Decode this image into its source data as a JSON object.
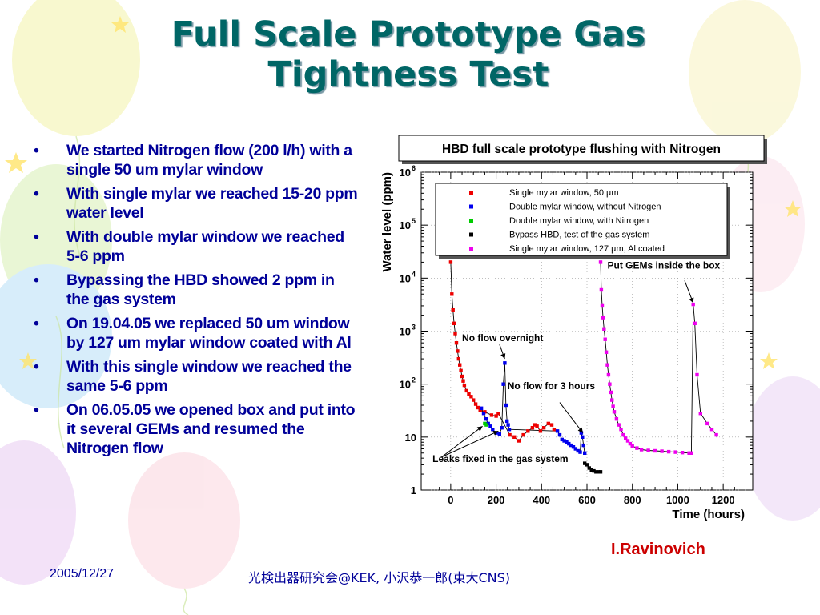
{
  "slide": {
    "title_line1": "Full Scale Prototype Gas",
    "title_line2": "Tightness Test",
    "bullets": [
      "We started Nitrogen flow (200 l/h) with a single 50 um mylar window",
      "With single mylar we reached 15-20 ppm water level",
      "With double mylar window we reached 5-6 ppm",
      "Bypassing the HBD showed 2 ppm in the gas system",
      "On 19.04.05 we replaced 50 um window by 127 um mylar window coated with Al",
      "With this single window we reached the same 5-6 ppm",
      "On 06.05.05 we opened box and put into it several GEMs and resumed the Nitrogen flow"
    ],
    "bullet_symbol": "•",
    "author": "I.Ravinovich",
    "footer_date": "2005/12/27",
    "footer_center": "光検出器研究会@KEK, 小沢恭一郎(東大CNS)"
  },
  "colors": {
    "title": "#006666",
    "bullets": "#000099",
    "author": "#cc0000",
    "series_red": "#ee0000",
    "series_blue": "#0000ee",
    "series_green": "#00cc00",
    "series_black": "#000000",
    "series_magenta": "#ee00ee"
  },
  "chart_data": {
    "type": "scatter",
    "title": "HBD full scale prototype flushing with Nitrogen",
    "xlabel": "Time (hours)",
    "ylabel": "Water level (ppm)",
    "xlim": [
      -130,
      1330
    ],
    "ylim": [
      1,
      1000000
    ],
    "yscale": "log",
    "x_ticks": [
      "0",
      "200",
      "400",
      "600",
      "800",
      "1000",
      "1200"
    ],
    "x_tick_values": [
      0,
      200,
      400,
      600,
      800,
      1000,
      1200
    ],
    "y_ticks": [
      {
        "base": "1",
        "exp": ""
      },
      {
        "base": "10",
        "exp": ""
      },
      {
        "base": "10",
        "exp": "2"
      },
      {
        "base": "10",
        "exp": "3"
      },
      {
        "base": "10",
        "exp": "4"
      },
      {
        "base": "10",
        "exp": "5"
      },
      {
        "base": "10",
        "exp": "6"
      }
    ],
    "y_tick_values": [
      1,
      10,
      100,
      1000,
      10000,
      100000,
      1000000
    ],
    "legend_position": "top-right",
    "series": [
      {
        "name": "Single mylar window, 50 µm",
        "color": "#ee0000",
        "points": [
          [
            0,
            20000
          ],
          [
            5,
            5000
          ],
          [
            10,
            2500
          ],
          [
            15,
            1400
          ],
          [
            20,
            900
          ],
          [
            25,
            600
          ],
          [
            30,
            420
          ],
          [
            35,
            300
          ],
          [
            40,
            230
          ],
          [
            45,
            180
          ],
          [
            50,
            140
          ],
          [
            55,
            115
          ],
          [
            60,
            95
          ],
          [
            70,
            75
          ],
          [
            80,
            65
          ],
          [
            90,
            58
          ],
          [
            100,
            50
          ],
          [
            110,
            42
          ],
          [
            120,
            36
          ],
          [
            130,
            32
          ],
          [
            150,
            30
          ],
          [
            180,
            26
          ],
          [
            200,
            25
          ],
          [
            210,
            28
          ],
          [
            260,
            11
          ],
          [
            280,
            10
          ],
          [
            300,
            8.5
          ],
          [
            320,
            11
          ],
          [
            340,
            13
          ],
          [
            360,
            15
          ],
          [
            370,
            17
          ],
          [
            380,
            16
          ],
          [
            395,
            13
          ],
          [
            410,
            15
          ],
          [
            430,
            18
          ],
          [
            445,
            17
          ],
          [
            455,
            14
          ]
        ]
      },
      {
        "name": "Double mylar window, without Nitrogen",
        "color": "#0000ee",
        "points": [
          [
            135,
            35
          ],
          [
            145,
            28
          ],
          [
            155,
            22
          ],
          [
            165,
            18
          ],
          [
            175,
            16
          ],
          [
            185,
            14
          ],
          [
            200,
            12
          ],
          [
            215,
            11.5
          ],
          [
            225,
            15
          ],
          [
            232,
            100
          ],
          [
            238,
            250
          ],
          [
            243,
            40
          ],
          [
            248,
            20
          ],
          [
            253,
            17
          ],
          [
            258,
            14
          ],
          [
            470,
            13
          ],
          [
            480,
            11
          ],
          [
            490,
            9
          ],
          [
            500,
            8.5
          ],
          [
            510,
            8
          ],
          [
            520,
            7.5
          ],
          [
            530,
            7
          ],
          [
            540,
            6.5
          ],
          [
            550,
            6
          ],
          [
            560,
            5.5
          ],
          [
            570,
            5.2
          ],
          [
            575,
            12
          ],
          [
            580,
            10
          ],
          [
            585,
            7
          ],
          [
            590,
            5
          ]
        ]
      },
      {
        "name": "Double mylar window, with Nitrogen",
        "color": "#00cc00",
        "points": [
          [
            150,
            18
          ],
          [
            157,
            17
          ]
        ]
      },
      {
        "name": "Bypass HBD, test of the gas system",
        "color": "#000000",
        "points": [
          [
            590,
            3.2
          ],
          [
            600,
            3.0
          ],
          [
            610,
            2.6
          ],
          [
            620,
            2.4
          ],
          [
            630,
            2.3
          ],
          [
            640,
            2.2
          ],
          [
            650,
            2.2
          ],
          [
            660,
            2.2
          ]
        ]
      },
      {
        "name": "Single mylar window, 127 µm, Al coated",
        "color": "#ee00ee",
        "points": [
          [
            660,
            20000
          ],
          [
            663,
            6000
          ],
          [
            667,
            3000
          ],
          [
            671,
            1800
          ],
          [
            675,
            1100
          ],
          [
            680,
            700
          ],
          [
            685,
            400
          ],
          [
            690,
            230
          ],
          [
            695,
            150
          ],
          [
            700,
            100
          ],
          [
            705,
            70
          ],
          [
            710,
            50
          ],
          [
            715,
            38
          ],
          [
            720,
            30
          ],
          [
            730,
            22
          ],
          [
            740,
            17
          ],
          [
            750,
            14
          ],
          [
            760,
            11
          ],
          [
            770,
            9.5
          ],
          [
            780,
            8.5
          ],
          [
            790,
            7.5
          ],
          [
            800,
            6.8
          ],
          [
            820,
            6.2
          ],
          [
            840,
            5.8
          ],
          [
            870,
            5.6
          ],
          [
            900,
            5.5
          ],
          [
            930,
            5.4
          ],
          [
            960,
            5.3
          ],
          [
            990,
            5.2
          ],
          [
            1020,
            5.1
          ],
          [
            1050,
            5
          ],
          [
            1060,
            5
          ],
          [
            1068,
            3200
          ],
          [
            1075,
            1400
          ],
          [
            1085,
            150
          ],
          [
            1100,
            28
          ],
          [
            1130,
            18
          ],
          [
            1150,
            14
          ],
          [
            1170,
            11
          ]
        ]
      }
    ],
    "annotations": [
      {
        "text": "No flow overnight",
        "x": 50,
        "y": 650
      },
      {
        "text": "No flow for 3 hours",
        "x": 250,
        "y": 80
      },
      {
        "text": "Put GEMs inside the box",
        "x": 690,
        "y": 15000
      },
      {
        "text": "Leaks fixed in the gas system",
        "x": -80,
        "y": 3.4
      }
    ]
  }
}
